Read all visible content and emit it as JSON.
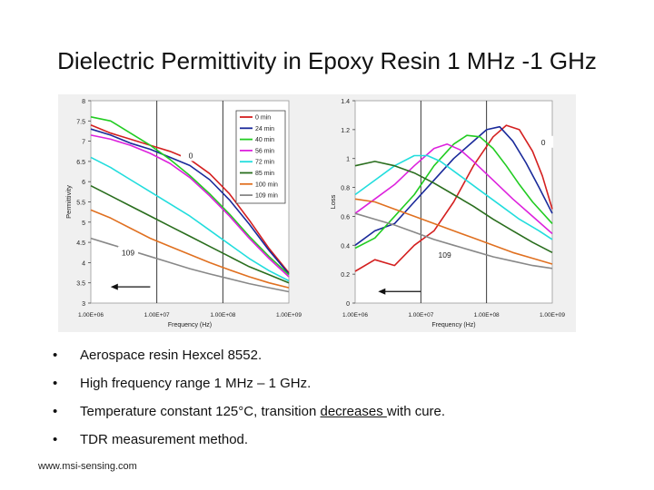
{
  "slide": {
    "title": "Dielectric Permittivity in Epoxy Resin 1 MHz -1 GHz",
    "bullets": [
      {
        "text": "Aerospace resin Hexcel 8552."
      },
      {
        "text": "High frequency range 1 MHz – 1 GHz."
      },
      {
        "pre": "Temperature constant 125°C, transition ",
        "underlined": "decreases ",
        "post": "with cure."
      },
      {
        "text": "TDR measurement method."
      }
    ],
    "bullet_symbol": "•",
    "footer": "www.msi-sensing.com"
  },
  "chart_data": [
    {
      "type": "line",
      "title": "",
      "xlabel": "Frequency (Hz)",
      "ylabel": "Permittivity",
      "xscale": "log",
      "xlim": [
        1000000,
        1000000000
      ],
      "ylim": [
        3,
        8
      ],
      "yticks": [
        "3",
        "3.5",
        "4",
        "4.5",
        "5",
        "5.5",
        "6",
        "6.5",
        "7",
        "7.5",
        "8"
      ],
      "xticks": [
        "1.00E+06",
        "1.00E+07",
        "1.00E+08",
        "1.00E+09"
      ],
      "legend_position": "top-right",
      "annotations": [
        {
          "text": "0",
          "x_log": 7.5,
          "y": 6.6
        },
        {
          "text": "109",
          "x_log": 6.55,
          "y": 4.2
        },
        {
          "text": "arrow",
          "from_x_log": 6.9,
          "to_x_log": 6.3,
          "y": 3.4
        }
      ],
      "series": [
        {
          "name": "0 min",
          "color": "#d42020",
          "x_log": [
            6.0,
            6.3,
            6.6,
            6.9,
            7.2,
            7.5,
            7.8,
            8.1,
            8.4,
            8.7,
            9.0
          ],
          "values": [
            7.4,
            7.2,
            7.05,
            6.9,
            6.75,
            6.55,
            6.2,
            5.7,
            5.05,
            4.35,
            3.75
          ]
        },
        {
          "name": "24 min",
          "color": "#1a2a9a",
          "x_log": [
            6.0,
            6.3,
            6.6,
            6.9,
            7.2,
            7.5,
            7.8,
            8.1,
            8.4,
            8.7,
            9.0
          ],
          "values": [
            7.3,
            7.15,
            6.95,
            6.8,
            6.6,
            6.4,
            6.05,
            5.55,
            4.95,
            4.3,
            3.72
          ]
        },
        {
          "name": "40 min",
          "color": "#22cc22",
          "x_log": [
            6.0,
            6.3,
            6.6,
            6.9,
            7.2,
            7.5,
            7.8,
            8.1,
            8.4,
            8.7,
            9.0
          ],
          "values": [
            7.6,
            7.5,
            7.2,
            6.9,
            6.55,
            6.15,
            5.7,
            5.2,
            4.65,
            4.15,
            3.7
          ]
        },
        {
          "name": "56 min",
          "color": "#dd22dd",
          "x_log": [
            6.0,
            6.3,
            6.6,
            6.9,
            7.2,
            7.5,
            7.8,
            8.1,
            8.4,
            8.7,
            9.0
          ],
          "values": [
            7.15,
            7.05,
            6.9,
            6.7,
            6.45,
            6.1,
            5.65,
            5.15,
            4.6,
            4.1,
            3.65
          ]
        },
        {
          "name": "72 min",
          "color": "#22dddd",
          "x_log": [
            6.0,
            6.3,
            6.6,
            6.9,
            7.2,
            7.5,
            7.8,
            8.1,
            8.4,
            8.7,
            9.0
          ],
          "values": [
            6.6,
            6.35,
            6.05,
            5.75,
            5.45,
            5.15,
            4.8,
            4.45,
            4.1,
            3.8,
            3.55
          ]
        },
        {
          "name": "85 min",
          "color": "#2a6e1e",
          "x_log": [
            6.0,
            6.3,
            6.6,
            6.9,
            7.2,
            7.5,
            7.8,
            8.1,
            8.4,
            8.7,
            9.0
          ],
          "values": [
            5.9,
            5.65,
            5.4,
            5.15,
            4.9,
            4.65,
            4.4,
            4.15,
            3.9,
            3.7,
            3.5
          ]
        },
        {
          "name": "100 min",
          "color": "#e07020",
          "x_log": [
            6.0,
            6.3,
            6.6,
            6.9,
            7.2,
            7.5,
            7.8,
            8.1,
            8.4,
            8.7,
            9.0
          ],
          "values": [
            5.3,
            5.1,
            4.85,
            4.6,
            4.4,
            4.2,
            4.0,
            3.82,
            3.65,
            3.5,
            3.38
          ]
        },
        {
          "name": "109 min",
          "color": "#888888",
          "x_log": [
            6.0,
            6.3,
            6.6,
            6.9,
            7.2,
            7.5,
            7.8,
            8.1,
            8.4,
            8.7,
            9.0
          ],
          "values": [
            4.6,
            4.45,
            4.3,
            4.15,
            4.0,
            3.85,
            3.72,
            3.6,
            3.48,
            3.38,
            3.28
          ]
        }
      ]
    },
    {
      "type": "line",
      "title": "",
      "xlabel": "Frequency (Hz)",
      "ylabel": "Loss",
      "xscale": "log",
      "xlim": [
        1000000,
        1000000000
      ],
      "ylim": [
        0,
        1.4
      ],
      "yticks": [
        "0",
        "0.2",
        "0.4",
        "0.6",
        "0.8",
        "1",
        "1.2",
        "1.4"
      ],
      "xticks": [
        "1.00E+06",
        "1.00E+07",
        "1.00E+08",
        "1.00E+09"
      ],
      "annotations": [
        {
          "text": "0",
          "x_log": 8.85,
          "y": 1.1
        },
        {
          "text": "109",
          "x_log": 7.35,
          "y": 0.32
        },
        {
          "text": "arrow",
          "from_x_log": 7.0,
          "to_x_log": 6.35,
          "y": 0.08
        }
      ],
      "series": [
        {
          "name": "0 min",
          "color": "#d42020",
          "x_log": [
            6.0,
            6.3,
            6.6,
            6.9,
            7.2,
            7.5,
            7.8,
            8.1,
            8.3,
            8.5,
            8.7,
            8.85,
            9.0
          ],
          "values": [
            0.22,
            0.3,
            0.26,
            0.4,
            0.5,
            0.7,
            0.95,
            1.15,
            1.23,
            1.2,
            1.05,
            0.88,
            0.65
          ]
        },
        {
          "name": "24 min",
          "color": "#1a2a9a",
          "x_log": [
            6.0,
            6.3,
            6.6,
            6.9,
            7.2,
            7.5,
            7.8,
            8.0,
            8.2,
            8.4,
            8.6,
            8.8,
            9.0
          ],
          "values": [
            0.4,
            0.5,
            0.55,
            0.7,
            0.85,
            1.0,
            1.12,
            1.2,
            1.22,
            1.12,
            0.97,
            0.8,
            0.62
          ]
        },
        {
          "name": "40 min",
          "color": "#22cc22",
          "x_log": [
            6.0,
            6.3,
            6.6,
            6.9,
            7.2,
            7.5,
            7.7,
            7.9,
            8.1,
            8.3,
            8.5,
            8.7,
            9.0
          ],
          "values": [
            0.38,
            0.45,
            0.6,
            0.75,
            0.95,
            1.1,
            1.16,
            1.15,
            1.07,
            0.95,
            0.82,
            0.7,
            0.55
          ]
        },
        {
          "name": "56 min",
          "color": "#dd22dd",
          "x_log": [
            6.0,
            6.3,
            6.6,
            6.9,
            7.2,
            7.4,
            7.6,
            7.8,
            8.1,
            8.4,
            8.7,
            9.0
          ],
          "values": [
            0.62,
            0.72,
            0.82,
            0.95,
            1.07,
            1.1,
            1.06,
            0.98,
            0.85,
            0.72,
            0.6,
            0.48
          ]
        },
        {
          "name": "72 min",
          "color": "#22dddd",
          "x_log": [
            6.0,
            6.3,
            6.6,
            6.9,
            7.1,
            7.3,
            7.6,
            7.9,
            8.2,
            8.5,
            8.8,
            9.0
          ],
          "values": [
            0.75,
            0.85,
            0.95,
            1.02,
            1.02,
            0.98,
            0.88,
            0.78,
            0.68,
            0.58,
            0.5,
            0.44
          ]
        },
        {
          "name": "85 min",
          "color": "#2a6e1e",
          "x_log": [
            6.0,
            6.3,
            6.6,
            6.9,
            7.2,
            7.5,
            7.8,
            8.1,
            8.4,
            8.7,
            9.0
          ],
          "values": [
            0.95,
            0.98,
            0.95,
            0.9,
            0.83,
            0.75,
            0.67,
            0.58,
            0.5,
            0.42,
            0.35
          ]
        },
        {
          "name": "100 min",
          "color": "#e07020",
          "x_log": [
            6.0,
            6.3,
            6.6,
            6.9,
            7.2,
            7.5,
            7.8,
            8.1,
            8.4,
            8.7,
            9.0
          ],
          "values": [
            0.72,
            0.7,
            0.65,
            0.6,
            0.55,
            0.5,
            0.45,
            0.4,
            0.35,
            0.31,
            0.27
          ]
        },
        {
          "name": "109 min",
          "color": "#888888",
          "x_log": [
            6.0,
            6.3,
            6.6,
            6.9,
            7.2,
            7.5,
            7.8,
            8.1,
            8.4,
            8.7,
            9.0
          ],
          "values": [
            0.62,
            0.58,
            0.54,
            0.49,
            0.44,
            0.4,
            0.36,
            0.32,
            0.29,
            0.26,
            0.24
          ]
        }
      ]
    }
  ]
}
